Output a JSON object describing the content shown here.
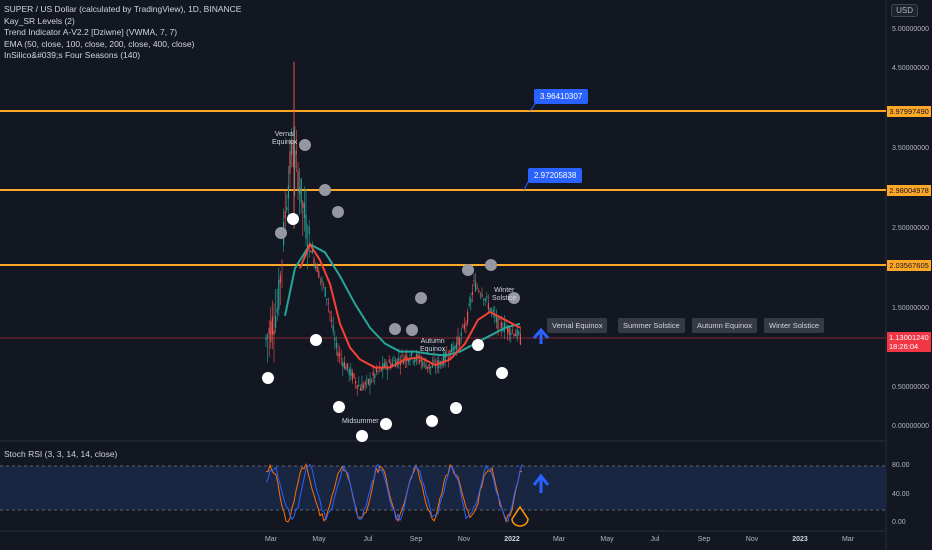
{
  "legend": {
    "title": "SUPER / US Dollar (calculated by TradingView), 1D, BINANCE",
    "indicators": [
      "Kay_SR Levels (2)",
      "Trend Indicator A-V2.2 [Dziwne] (VWMA, 7, 7)",
      "EMA (50, close, 100, close, 200, close, 400, close)",
      "InSilico&#039;s Four Seasons (140)"
    ]
  },
  "currency_button": "USD",
  "price_axis": {
    "ticks": [
      "5.00000000",
      "4.50000000",
      "3.50000000",
      "2.50000000",
      "1.50000000",
      "0.50000000",
      "0.00000000"
    ],
    "levels": [
      "3.97997490",
      "2.98004978",
      "2.03567605"
    ],
    "last_price": "1.13001240",
    "countdown": "18:26:04"
  },
  "callouts": [
    "3.96410307",
    "2.97205838"
  ],
  "season_labels": [
    "Vernal Equinox",
    "Summer Solstice",
    "Autumn Equinox",
    "Winter Solstice"
  ],
  "chart_annotations": {
    "vernal": "Vernal\nEquinox",
    "midsummer": "Midsummer",
    "autumn": "Autumn\nEquinox",
    "winter": "Winter\nSolstice"
  },
  "stoch": {
    "title": "Stoch RSI (3, 3, 14, 14, close)",
    "ticks": [
      "80.00",
      "40.00",
      "0.00"
    ]
  },
  "time_axis": [
    "Mar",
    "May",
    "Jul",
    "Sep",
    "Nov",
    "2022",
    "Mar",
    "May",
    "Jul",
    "Sep",
    "Nov",
    "2023",
    "Mar"
  ],
  "colors": {
    "background": "#131722",
    "level_line": "#ffa726",
    "callout": "#2962ff",
    "last_price": "#f23645",
    "ema_red": "#f44336",
    "ema_teal": "#26a69a",
    "stoch_k": "#2962ff",
    "stoch_d": "#ff6d00"
  },
  "chart_data": {
    "type": "candlestick",
    "ylim": [
      0,
      5
    ],
    "levels": [
      3.9799749,
      2.98004978,
      2.03567605
    ],
    "last_price": 1.1300124,
    "ema_fast": [
      1.8,
      2.4,
      2.1,
      1.5,
      1.1,
      0.9,
      0.8,
      0.85,
      0.95,
      1.1,
      1.4,
      1.35,
      1.2
    ],
    "ema_slow": [
      1.5,
      2.0,
      2.0,
      1.7,
      1.3,
      1.0,
      0.95,
      0.9,
      0.95,
      1.0,
      1.2,
      1.25,
      1.2
    ],
    "stoch_ylim": [
      0,
      100
    ]
  }
}
